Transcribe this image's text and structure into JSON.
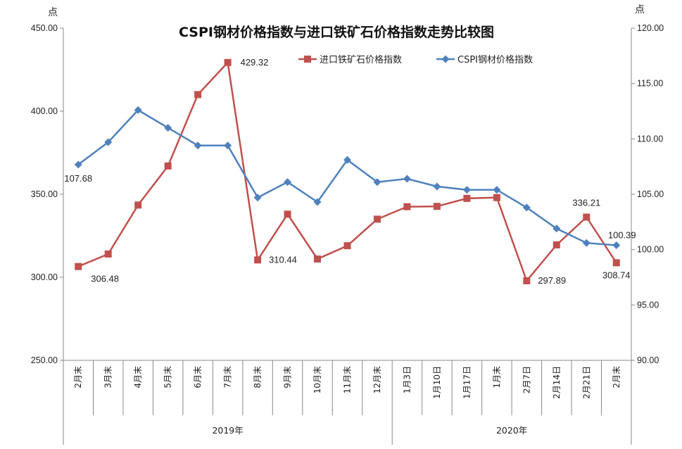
{
  "chart_data": {
    "type": "line",
    "title": "CSPI钢材价格指数与进口铁矿石价格指数走势比较图",
    "y_left_unit": "点",
    "y_right_unit": "点",
    "y_left": {
      "lim": [
        250,
        450
      ],
      "ticks": [
        "250.00",
        "300.00",
        "350.00",
        "400.00",
        "450.00"
      ]
    },
    "y_right": {
      "lim": [
        90,
        120
      ],
      "ticks": [
        "90.00",
        "95.00",
        "100.00",
        "105.00",
        "110.00",
        "115.00",
        "120.00"
      ]
    },
    "categories": [
      "2月末",
      "3月末",
      "4月末",
      "5月末",
      "6月末",
      "7月末",
      "8月末",
      "9月末",
      "10月末",
      "11月末",
      "12月末",
      "1月3日",
      "1月10日",
      "1月17日",
      "1月末",
      "2月7日",
      "2月14日",
      "2月21日",
      "2月末"
    ],
    "groups": [
      {
        "label": "2019年",
        "count": 11
      },
      {
        "label": "2020年",
        "count": 8
      }
    ],
    "series": [
      {
        "name": "进口铁矿石价格指数",
        "axis": "left",
        "color": "#C0504D",
        "marker": "square",
        "values": [
          306.48,
          314.0,
          343.5,
          367.0,
          410.0,
          429.32,
          310.44,
          338.0,
          311.0,
          319.0,
          335.0,
          342.5,
          342.7,
          347.5,
          348.0,
          297.89,
          319.5,
          336.21,
          308.74
        ],
        "labels": {
          "0": "306.48",
          "5": "429.32",
          "6": "310.44",
          "15": "297.89",
          "17": "336.21",
          "18": "308.74"
        }
      },
      {
        "name": "CSPI钢材价格指数",
        "axis": "right",
        "color": "#4F81BD",
        "marker": "diamond",
        "values": [
          107.68,
          109.7,
          112.6,
          111.0,
          109.4,
          109.4,
          104.7,
          106.1,
          104.3,
          108.1,
          106.1,
          106.4,
          105.7,
          105.4,
          105.4,
          103.8,
          101.9,
          100.6,
          100.39
        ],
        "labels": {
          "0": "107.68",
          "18": "100.39"
        }
      }
    ],
    "legend_position": "top",
    "grid": false
  }
}
